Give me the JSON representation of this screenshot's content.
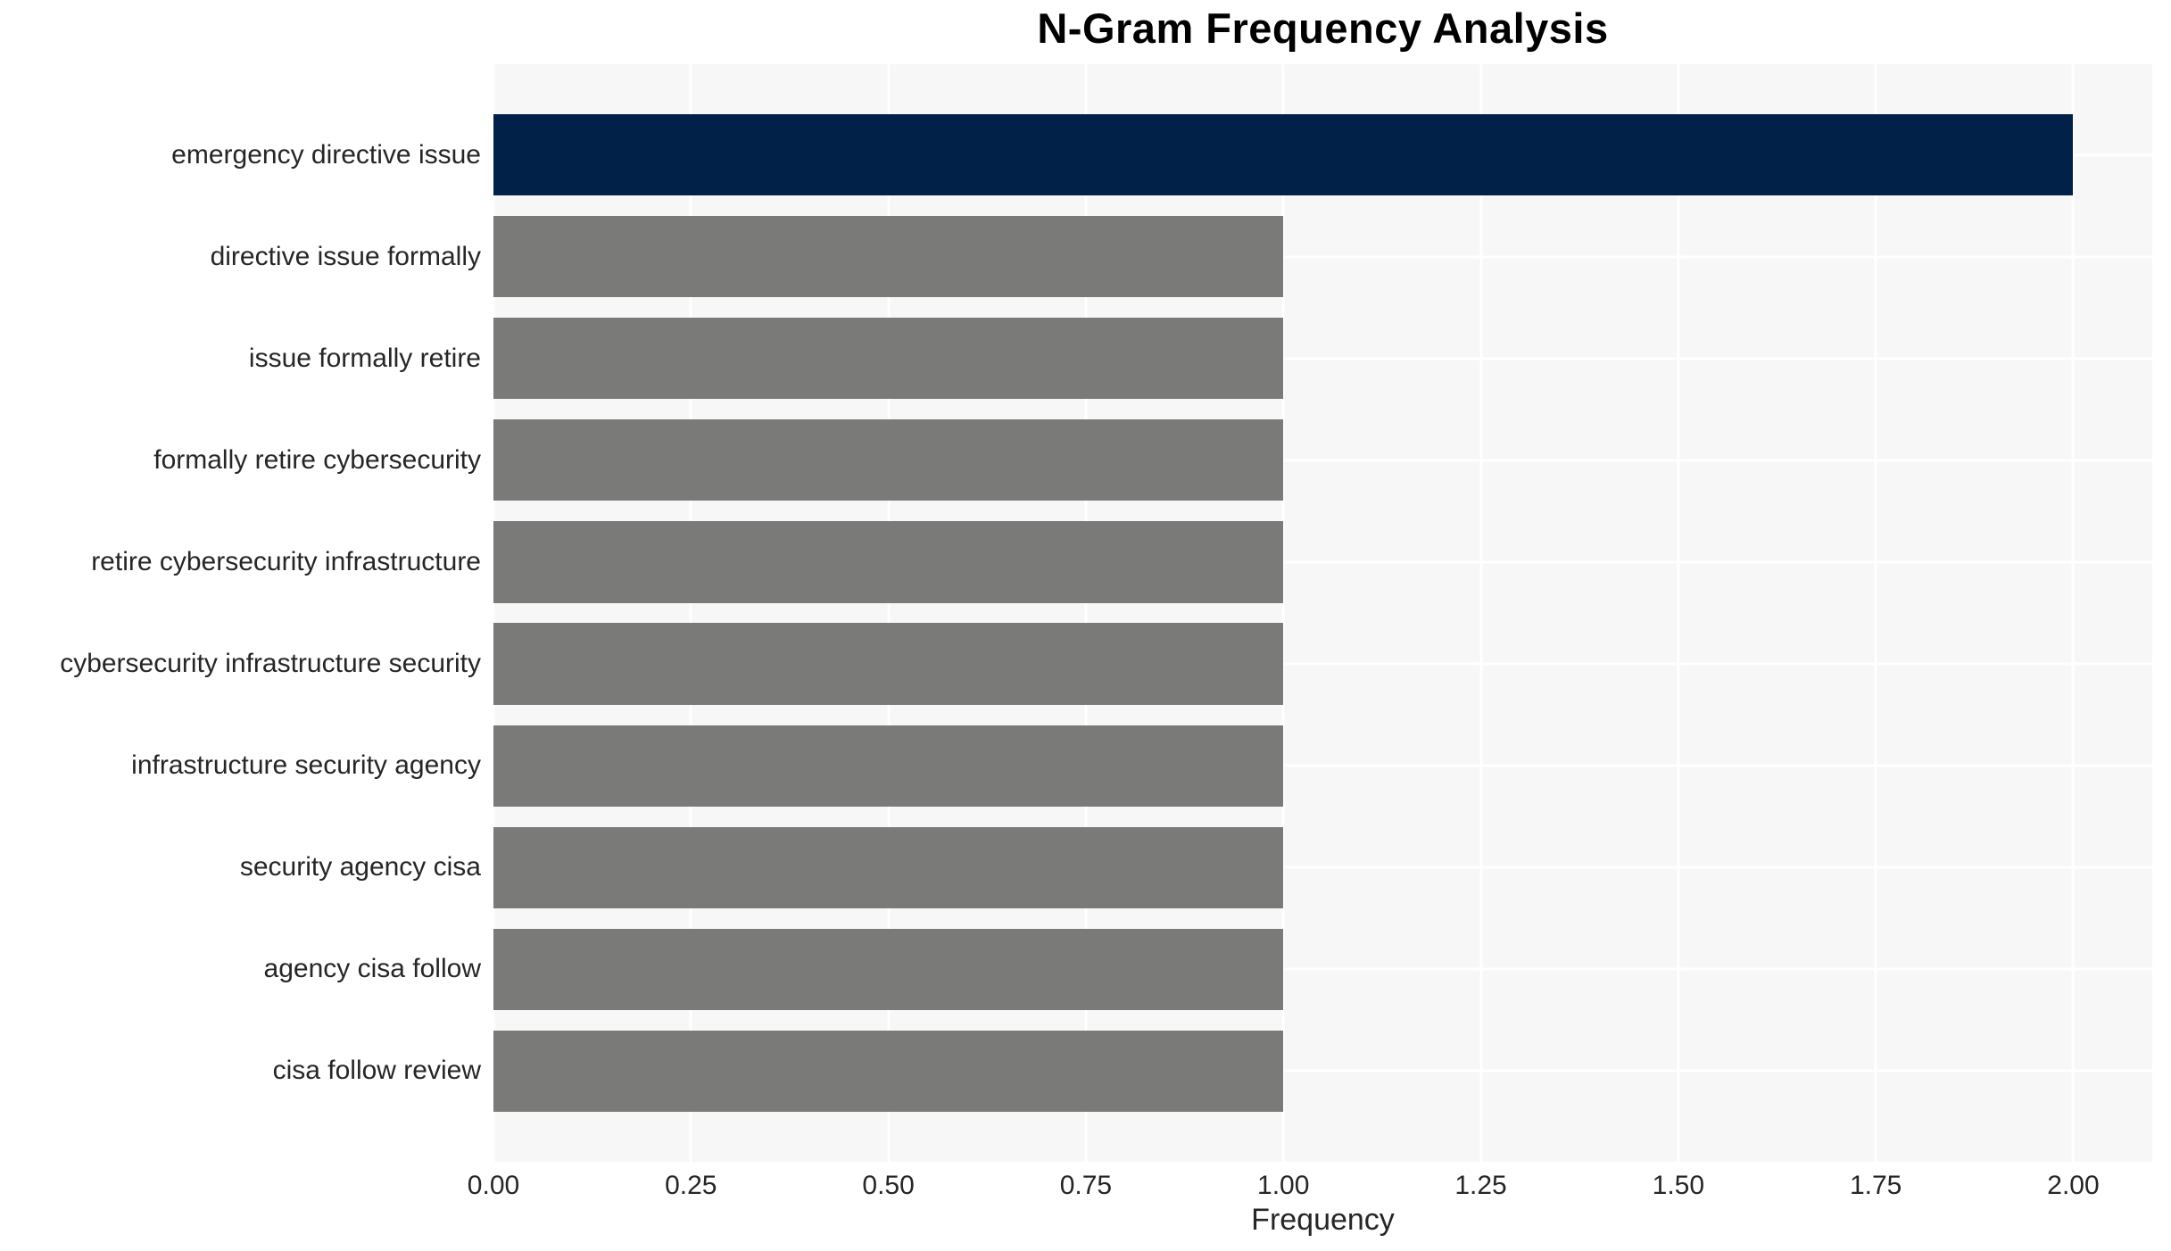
{
  "chart_data": {
    "type": "bar",
    "orientation": "horizontal",
    "title": "N-Gram Frequency Analysis",
    "xlabel": "Frequency",
    "ylabel": "",
    "categories": [
      "emergency directive issue",
      "directive issue formally",
      "issue formally retire",
      "formally retire cybersecurity",
      "retire cybersecurity infrastructure",
      "cybersecurity infrastructure security",
      "infrastructure security agency",
      "security agency cisa",
      "agency cisa follow",
      "cisa follow review"
    ],
    "values": [
      2,
      1,
      1,
      1,
      1,
      1,
      1,
      1,
      1,
      1
    ],
    "bar_colors": [
      "#012149",
      "#7a7a78",
      "#7a7a78",
      "#7a7a78",
      "#7a7a78",
      "#7a7a78",
      "#7a7a78",
      "#7a7a78",
      "#7a7a78",
      "#7a7a78"
    ],
    "xlim": [
      0,
      2.1
    ],
    "xtick_labels": [
      "0.00",
      "0.25",
      "0.50",
      "0.75",
      "1.00",
      "1.25",
      "1.50",
      "1.75",
      "2.00"
    ],
    "grid": true,
    "legend": false,
    "colors": {
      "highlight_bar": "#012149",
      "default_bar": "#7a7a78",
      "plot_background": "#f7f7f7",
      "gridline": "#ffffff",
      "text": "#262626",
      "title": "#000000"
    }
  }
}
